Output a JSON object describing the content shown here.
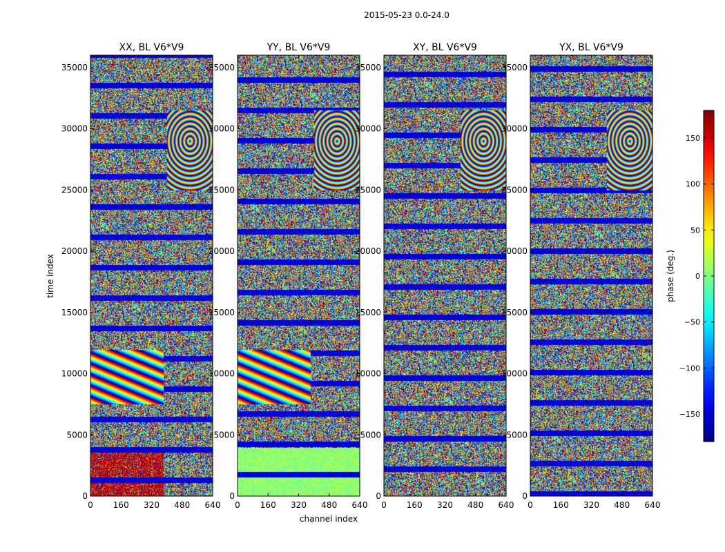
{
  "figure_title": "2015-05-23 0.0-24.0",
  "chart_data": {
    "type": "heatmap",
    "title": "2015-05-23 0.0-24.0",
    "xlabel": "channel index",
    "ylabel": "time index",
    "xlim": [
      0,
      640
    ],
    "ylim": [
      0,
      36000
    ],
    "xticks": [
      0,
      160,
      320,
      480,
      640
    ],
    "yticks": [
      0,
      5000,
      10000,
      15000,
      20000,
      25000,
      30000,
      35000
    ],
    "colorbar": {
      "label": "phase (deg.)",
      "range": [
        -180,
        180
      ],
      "ticks": [
        -150,
        -100,
        -50,
        0,
        50,
        100,
        150
      ],
      "tick_labels": [
        "−150",
        "−100",
        "−50",
        "0",
        "50",
        "100",
        "150"
      ],
      "colormap": "jet"
    },
    "panels": [
      {
        "title": "XX, BL V6*V9",
        "pol": "XX",
        "baseline": "V6*V9"
      },
      {
        "title": "YY, BL V6*V9",
        "pol": "YY",
        "baseline": "V6*V9"
      },
      {
        "title": "XY, BL V6*V9",
        "pol": "XY",
        "baseline": "V6*V9"
      },
      {
        "title": "YX, BL V6*V9",
        "pol": "YX",
        "baseline": "V6*V9"
      }
    ]
  }
}
